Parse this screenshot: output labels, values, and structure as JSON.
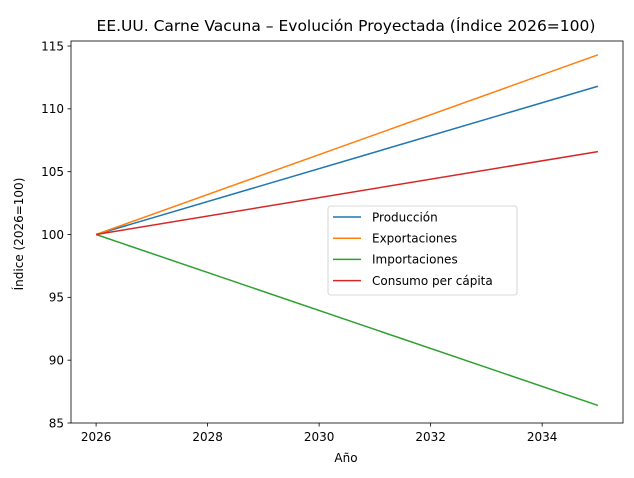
{
  "chart_data": {
    "type": "line",
    "title": "EE.UU. Carne Vacuna – Evolución Proyectada (Índice 2026=100)",
    "xlabel": "Año",
    "ylabel": "Índice (2026=100)",
    "xlim": [
      2025.55,
      2035.45
    ],
    "ylim": [
      85,
      115.4
    ],
    "xticks": [
      2026,
      2028,
      2030,
      2032,
      2034
    ],
    "yticks": [
      85,
      90,
      95,
      100,
      105,
      110,
      115
    ],
    "legend_position": "center-right",
    "grid": false,
    "series": [
      {
        "name": "Producción",
        "color": "#1f77b4",
        "x": [
          2026,
          2035
        ],
        "values": [
          100,
          111.8
        ]
      },
      {
        "name": "Exportaciones",
        "color": "#ff7f0e",
        "x": [
          2026,
          2035
        ],
        "values": [
          100,
          114.3
        ]
      },
      {
        "name": "Importaciones",
        "color": "#2ca02c",
        "x": [
          2026,
          2035
        ],
        "values": [
          100,
          86.4
        ]
      },
      {
        "name": "Consumo per cápita",
        "color": "#d62728",
        "x": [
          2026,
          2035
        ],
        "values": [
          100,
          106.6
        ]
      }
    ]
  }
}
